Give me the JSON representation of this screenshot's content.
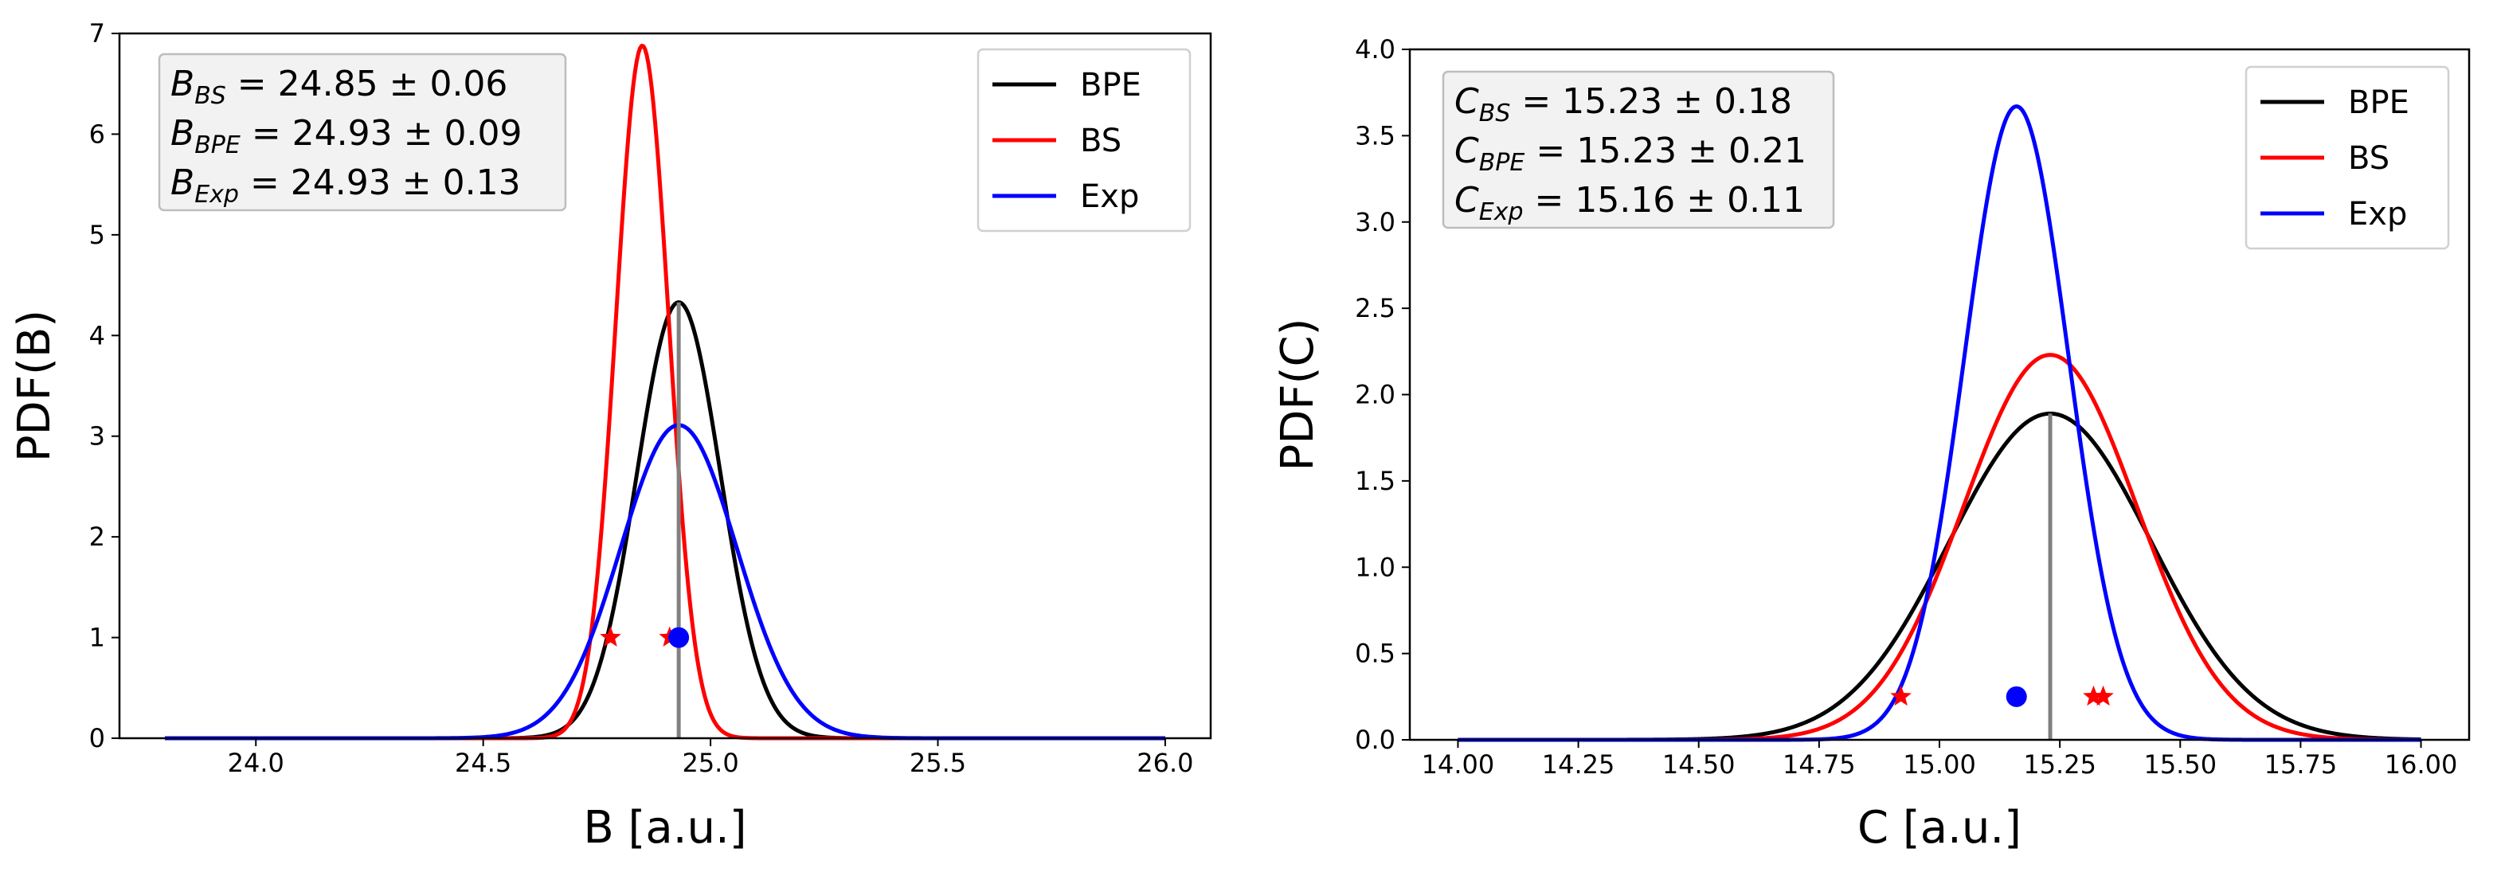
{
  "chart_data": [
    {
      "type": "line",
      "xlabel": "B [a.u.]",
      "ylabel": "PDF(B)",
      "xlim": [
        23.7,
        26.1
      ],
      "ylim": [
        0,
        7
      ],
      "xticks": [
        "24.0",
        "24.5",
        "25.0",
        "25.5",
        "26.0"
      ],
      "yticks": [
        "0",
        "1",
        "2",
        "3",
        "4",
        "5",
        "6",
        "7"
      ],
      "x_range": [
        23.8,
        26.0
      ],
      "series": [
        {
          "name": "BPE",
          "color": "#000000",
          "mean": 24.93,
          "std": 0.092,
          "peak": 4.33
        },
        {
          "name": "BS",
          "color": "#ff0000",
          "mean": 24.85,
          "std": 0.058,
          "peak": 6.88
        },
        {
          "name": "Exp",
          "color": "#0000ff",
          "mean": 24.93,
          "std": 0.128,
          "peak": 3.11
        }
      ],
      "legend": {
        "position": "top-right",
        "entries": [
          "BPE",
          "BS",
          "Exp"
        ]
      },
      "annotations": [
        {
          "symbol": "B",
          "sub": "BS",
          "text": " = 24.85 ± 0.06"
        },
        {
          "symbol": "B",
          "sub": "BPE",
          "text": " = 24.93 ± 0.09"
        },
        {
          "symbol": "B",
          "sub": "Exp",
          "text": " = 24.93 ± 0.13"
        }
      ],
      "vertical_line": {
        "x": 24.93,
        "y_top": 4.33,
        "color": "#808080"
      },
      "star_markers": {
        "color": "#ff0000",
        "y": 1.0,
        "x": [
          24.78,
          24.91
        ]
      },
      "dot_markers": {
        "color": "#0000ff",
        "y": 1.0,
        "x": [
          24.93
        ]
      },
      "grid": false
    },
    {
      "type": "line",
      "xlabel": "C [a.u.]",
      "ylabel": "PDF(C)",
      "xlim": [
        13.9,
        16.1
      ],
      "ylim": [
        0,
        4.0
      ],
      "xticks": [
        "14.00",
        "14.25",
        "14.50",
        "14.75",
        "15.00",
        "15.25",
        "15.50",
        "15.75",
        "16.00"
      ],
      "yticks": [
        "0.0",
        "0.5",
        "1.0",
        "1.5",
        "2.0",
        "2.5",
        "3.0",
        "3.5",
        "4.0"
      ],
      "x_range": [
        14.0,
        16.0
      ],
      "series": [
        {
          "name": "BPE",
          "color": "#000000",
          "mean": 15.23,
          "std": 0.21,
          "peak": 1.89
        },
        {
          "name": "BS",
          "color": "#ff0000",
          "mean": 15.23,
          "std": 0.18,
          "peak": 2.23
        },
        {
          "name": "Exp",
          "color": "#0000ff",
          "mean": 15.16,
          "std": 0.108,
          "peak": 3.67
        }
      ],
      "legend": {
        "position": "top-right",
        "entries": [
          "BPE",
          "BS",
          "Exp"
        ]
      },
      "annotations": [
        {
          "symbol": "C",
          "sub": "BS",
          "text": " = 15.23 ± 0.18"
        },
        {
          "symbol": "C",
          "sub": "BPE",
          "text": " = 15.23 ± 0.21"
        },
        {
          "symbol": "C",
          "sub": "Exp",
          "text": " = 15.16 ± 0.11"
        }
      ],
      "vertical_line": {
        "x": 15.23,
        "y_top": 1.89,
        "color": "#808080"
      },
      "star_markers": {
        "color": "#ff0000",
        "y": 0.25,
        "x": [
          14.92,
          15.32,
          15.34
        ]
      },
      "dot_markers": {
        "color": "#0000ff",
        "y": 0.25,
        "x": [
          15.16
        ]
      },
      "grid": false
    }
  ]
}
